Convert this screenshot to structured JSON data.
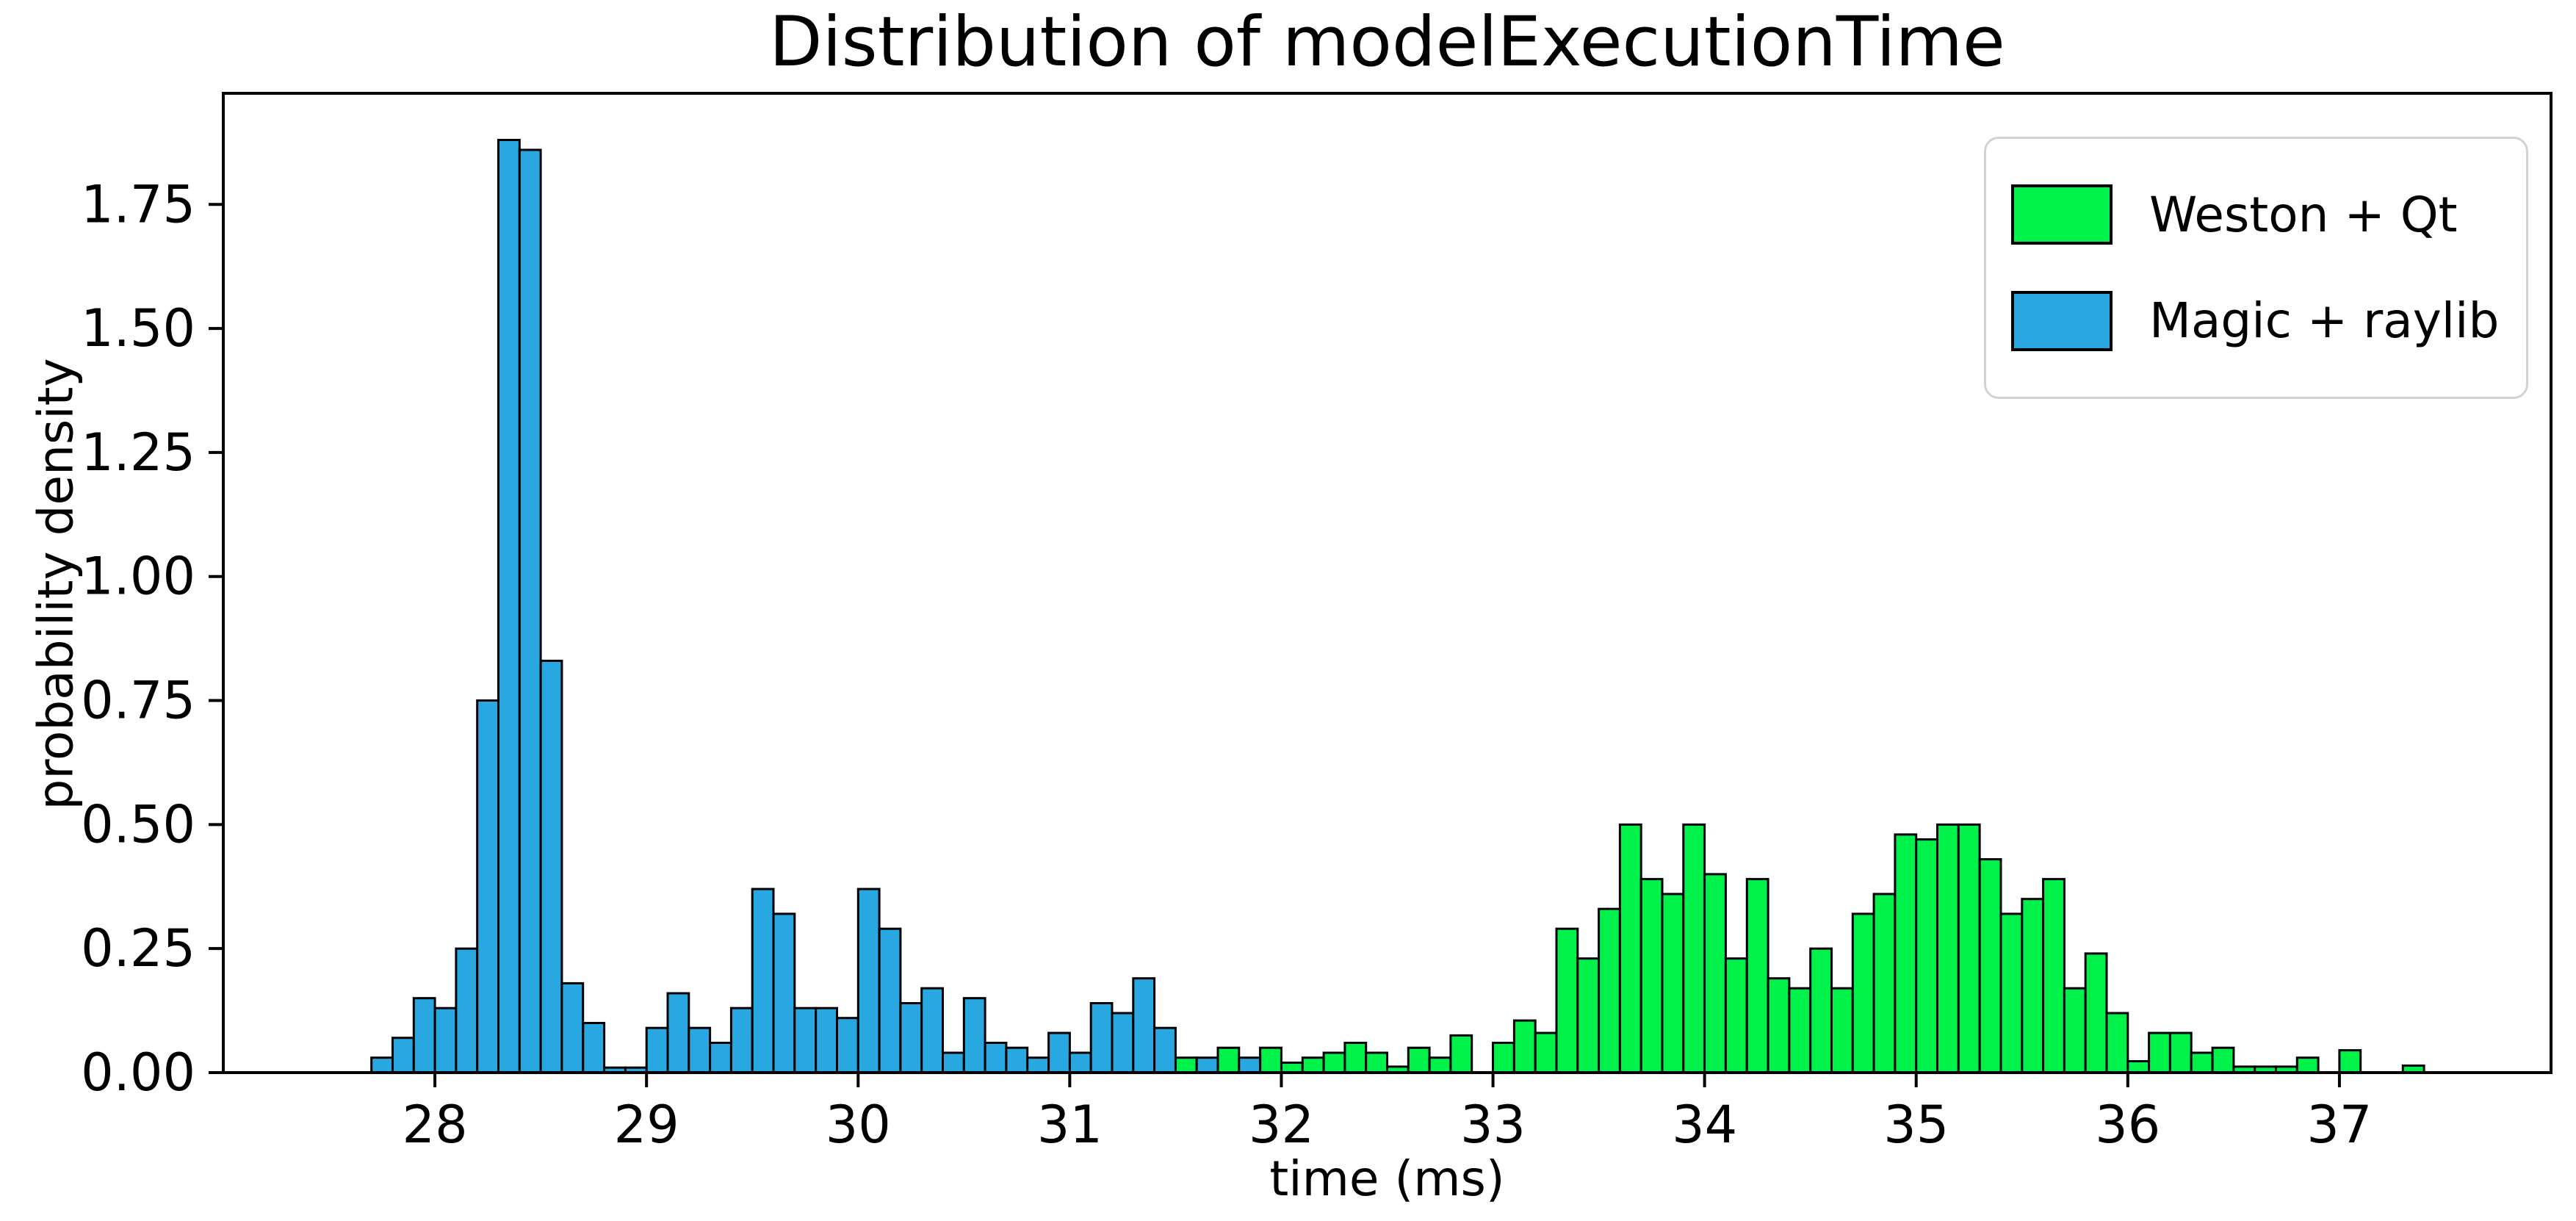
{
  "chart_data": {
    "type": "bar",
    "subtype": "histogram-overlay",
    "title": "Distribution of modelExecutionTime",
    "xlabel": "time (ms)",
    "ylabel": "probability density",
    "xlim": [
      27.0,
      38.0
    ],
    "ylim": [
      0,
      1.974
    ],
    "xticks": [
      "28",
      "29",
      "30",
      "31",
      "32",
      "33",
      "34",
      "35",
      "36",
      "37"
    ],
    "xtick_values": [
      28,
      29,
      30,
      31,
      32,
      33,
      34,
      35,
      36,
      37
    ],
    "yticks": [
      "0.00",
      "0.25",
      "0.50",
      "0.75",
      "1.00",
      "1.25",
      "1.50",
      "1.75"
    ],
    "ytick_values": [
      0,
      0.25,
      0.5,
      0.75,
      1.0,
      1.25,
      1.5,
      1.75
    ],
    "grid": false,
    "legend_position": "upper right",
    "bin_width": 0.1,
    "bar_edge_color": "#000000",
    "series": [
      {
        "name": "Weston + Qt",
        "color": "#00f24a",
        "bins": [
          [
            31.5,
            0.03
          ],
          [
            31.7,
            0.05
          ],
          [
            31.9,
            0.05
          ],
          [
            32.0,
            0.02
          ],
          [
            32.1,
            0.03
          ],
          [
            32.2,
            0.04
          ],
          [
            32.3,
            0.06
          ],
          [
            32.4,
            0.04
          ],
          [
            32.5,
            0.012
          ],
          [
            32.6,
            0.05
          ],
          [
            32.7,
            0.03
          ],
          [
            32.8,
            0.075
          ],
          [
            33.0,
            0.06
          ],
          [
            33.1,
            0.105
          ],
          [
            33.2,
            0.08
          ],
          [
            33.3,
            0.29
          ],
          [
            33.4,
            0.23
          ],
          [
            33.5,
            0.33
          ],
          [
            33.6,
            0.5
          ],
          [
            33.7,
            0.39
          ],
          [
            33.8,
            0.36
          ],
          [
            33.9,
            0.5
          ],
          [
            34.0,
            0.4
          ],
          [
            34.1,
            0.23
          ],
          [
            34.2,
            0.39
          ],
          [
            34.3,
            0.19
          ],
          [
            34.4,
            0.17
          ],
          [
            34.5,
            0.25
          ],
          [
            34.6,
            0.17
          ],
          [
            34.7,
            0.32
          ],
          [
            34.8,
            0.36
          ],
          [
            34.9,
            0.48
          ],
          [
            35.0,
            0.47
          ],
          [
            35.1,
            0.5
          ],
          [
            35.2,
            0.5
          ],
          [
            35.3,
            0.43
          ],
          [
            35.4,
            0.32
          ],
          [
            35.5,
            0.35
          ],
          [
            35.6,
            0.39
          ],
          [
            35.7,
            0.17
          ],
          [
            35.8,
            0.24
          ],
          [
            35.9,
            0.12
          ],
          [
            36.0,
            0.023
          ],
          [
            36.1,
            0.08
          ],
          [
            36.2,
            0.08
          ],
          [
            36.3,
            0.04
          ],
          [
            36.4,
            0.05
          ],
          [
            36.5,
            0.012
          ],
          [
            36.6,
            0.012
          ],
          [
            36.7,
            0.012
          ],
          [
            36.8,
            0.03
          ],
          [
            37.0,
            0.045
          ],
          [
            37.3,
            0.014
          ]
        ]
      },
      {
        "name": "Magic + raylib",
        "color": "#29a7e0",
        "bins": [
          [
            27.7,
            0.03
          ],
          [
            27.8,
            0.07
          ],
          [
            27.9,
            0.15
          ],
          [
            28.0,
            0.13
          ],
          [
            28.1,
            0.25
          ],
          [
            28.2,
            0.75
          ],
          [
            28.3,
            1.88
          ],
          [
            28.4,
            1.86
          ],
          [
            28.5,
            0.83
          ],
          [
            28.6,
            0.18
          ],
          [
            28.7,
            0.1
          ],
          [
            28.8,
            0.01
          ],
          [
            28.9,
            0.01
          ],
          [
            29.0,
            0.09
          ],
          [
            29.1,
            0.16
          ],
          [
            29.2,
            0.09
          ],
          [
            29.3,
            0.06
          ],
          [
            29.4,
            0.13
          ],
          [
            29.5,
            0.37
          ],
          [
            29.6,
            0.32
          ],
          [
            29.7,
            0.13
          ],
          [
            29.8,
            0.13
          ],
          [
            29.9,
            0.11
          ],
          [
            30.0,
            0.37
          ],
          [
            30.1,
            0.29
          ],
          [
            30.2,
            0.14
          ],
          [
            30.3,
            0.17
          ],
          [
            30.4,
            0.04
          ],
          [
            30.5,
            0.15
          ],
          [
            30.6,
            0.06
          ],
          [
            30.7,
            0.05
          ],
          [
            30.8,
            0.03
          ],
          [
            30.9,
            0.08
          ],
          [
            31.0,
            0.04
          ],
          [
            31.1,
            0.14
          ],
          [
            31.2,
            0.12
          ],
          [
            31.3,
            0.19
          ],
          [
            31.4,
            0.09
          ],
          [
            31.6,
            0.03
          ],
          [
            31.8,
            0.03
          ]
        ]
      }
    ]
  }
}
